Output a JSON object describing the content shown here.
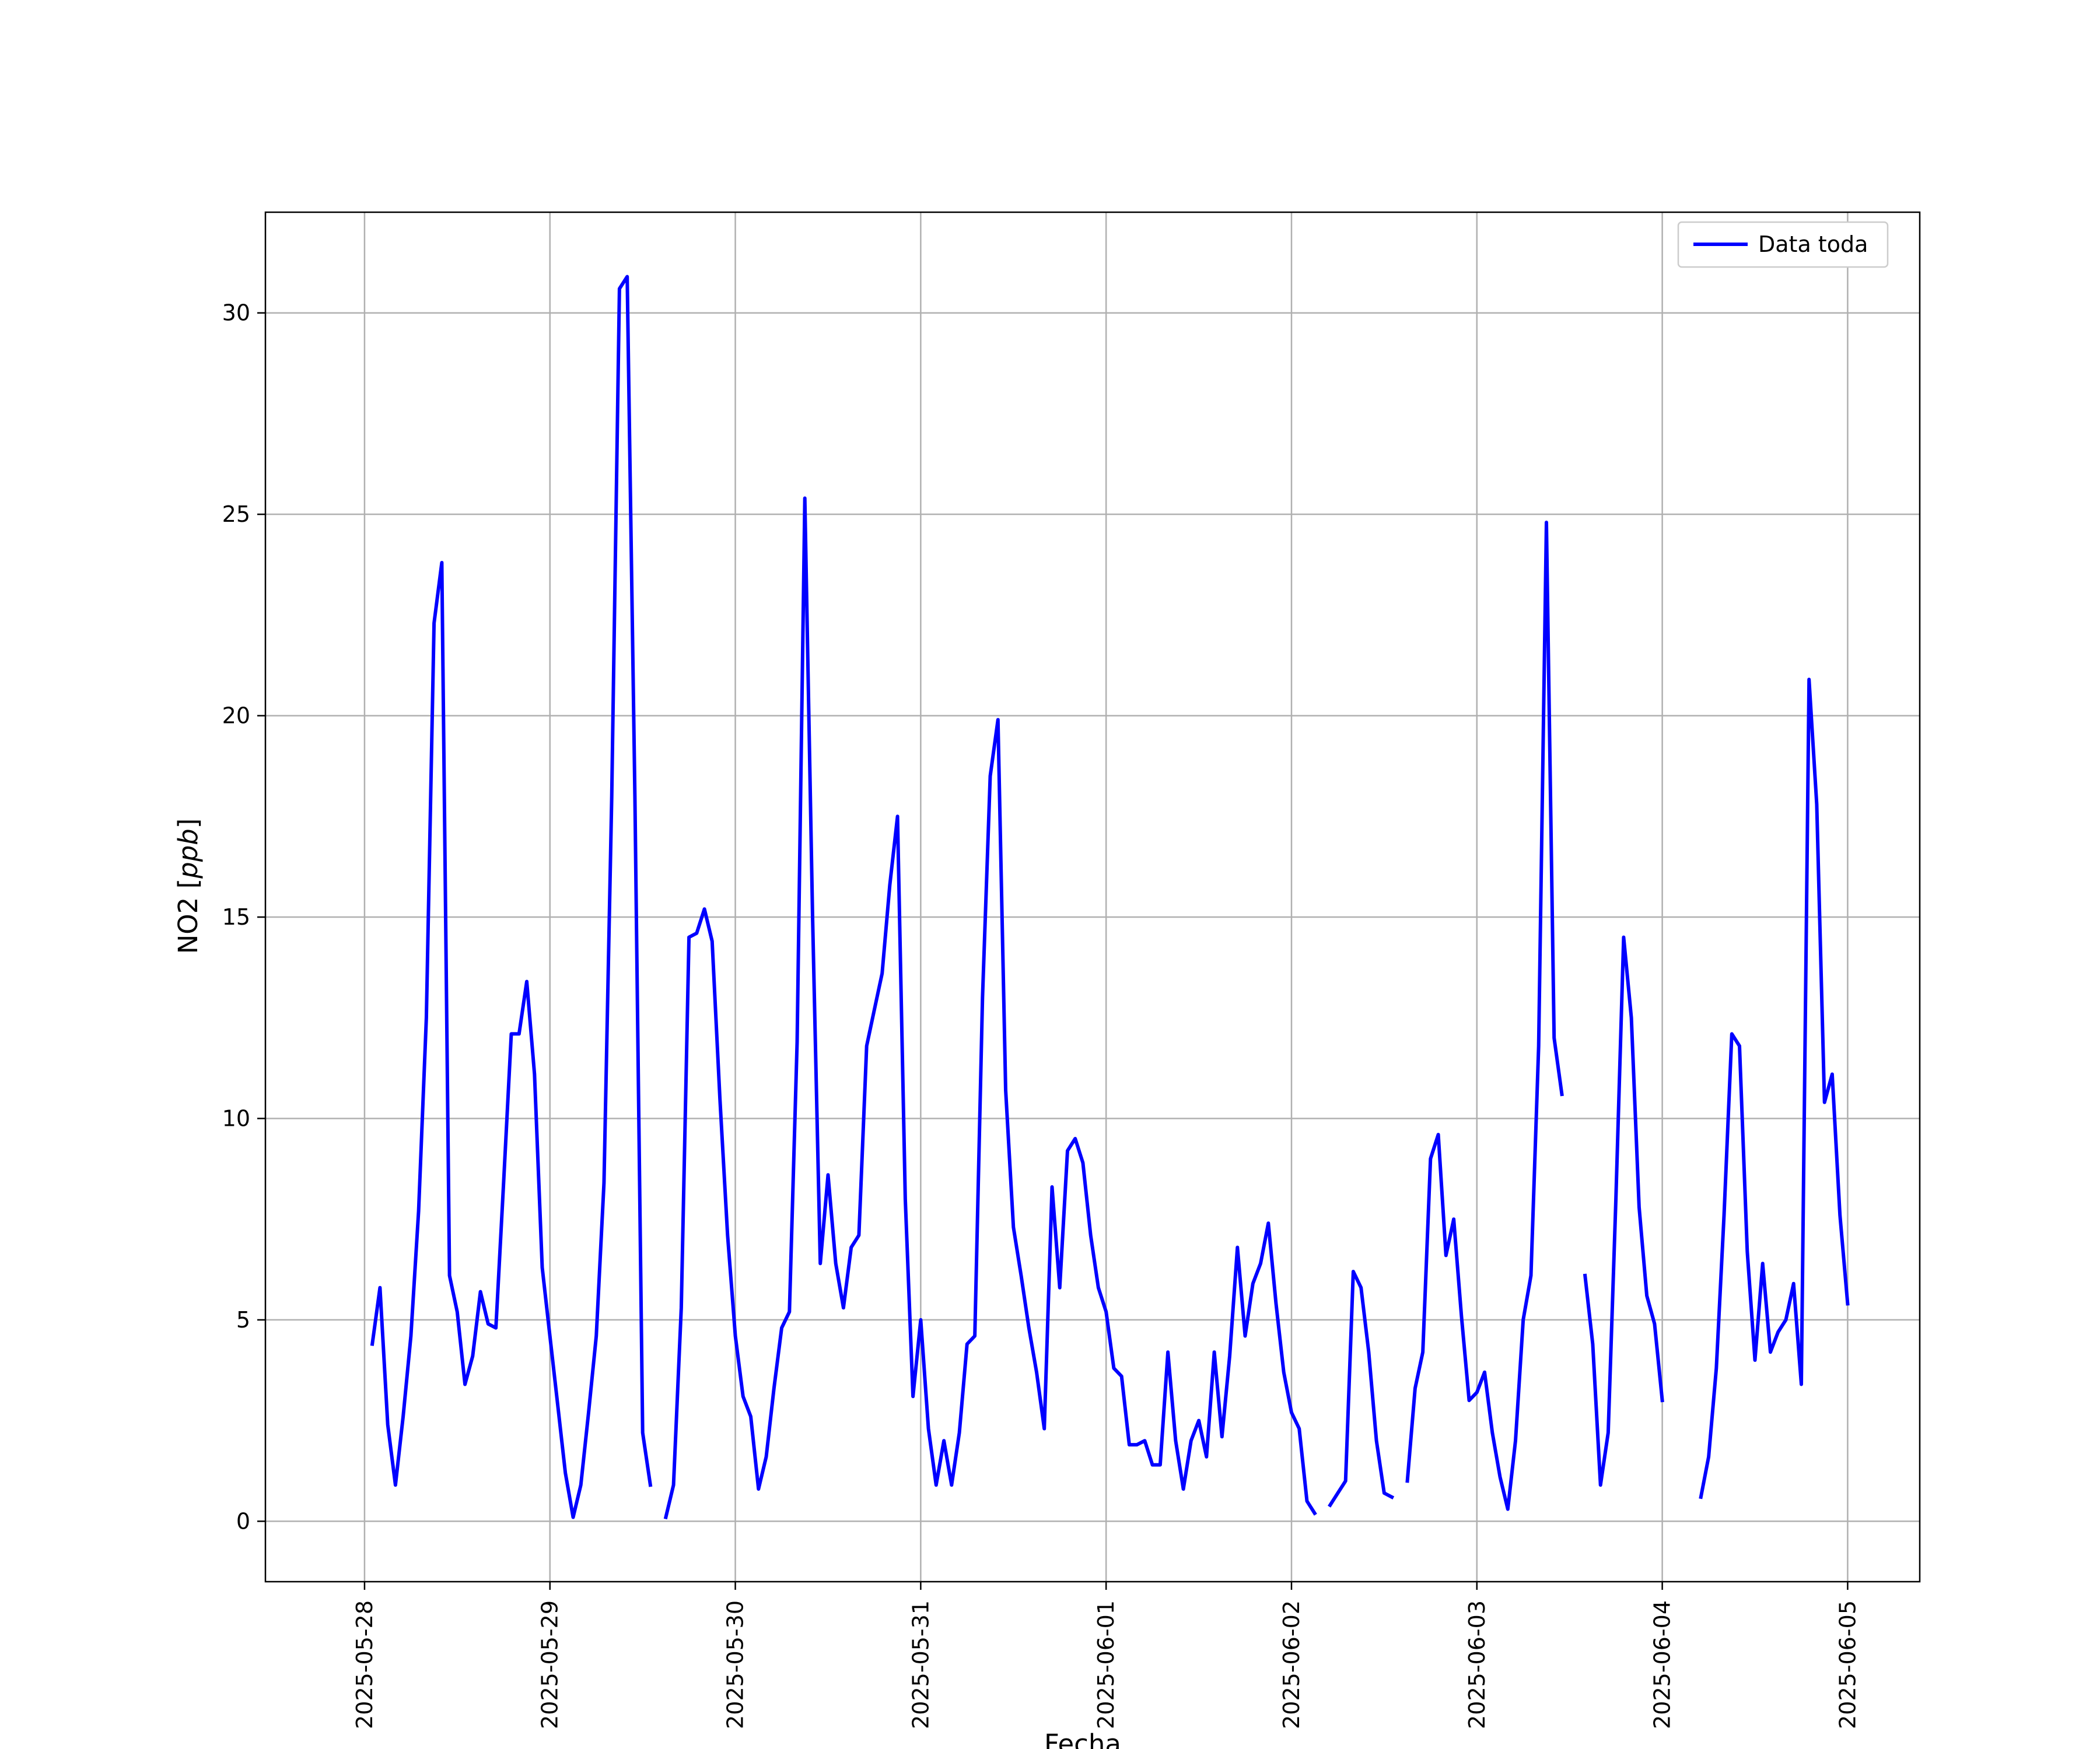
{
  "chart_data": {
    "type": "line",
    "xlabel": "Fecha",
    "ylabel_text": "NO2",
    "ylabel_unit": "ppb",
    "xticks": [
      "2025-05-28",
      "2025-05-29",
      "2025-05-30",
      "2025-05-31",
      "2025-06-01",
      "2025-06-02",
      "2025-06-03",
      "2025-06-04",
      "2025-06-05"
    ],
    "yticks": [
      0,
      5,
      10,
      15,
      20,
      25,
      30
    ],
    "xlim": [
      "2025-05-27 11:10",
      "2025-06-05 09:20"
    ],
    "ylim": [
      -1.5,
      32.5
    ],
    "grid": true,
    "legend_position": "top-right",
    "color": "#0000ff",
    "series": [
      {
        "name": "Data toda",
        "segments": [
          [
            [
              "2025-05-28 01:00",
              4.4
            ],
            [
              "2025-05-28 02:00",
              5.8
            ],
            [
              "2025-05-28 03:00",
              2.4
            ],
            [
              "2025-05-28 04:00",
              0.9
            ],
            [
              "2025-05-28 05:00",
              2.6
            ],
            [
              "2025-05-28 06:00",
              4.6
            ],
            [
              "2025-05-28 07:00",
              7.7
            ],
            [
              "2025-05-28 08:00",
              12.5
            ],
            [
              "2025-05-28 09:00",
              22.3
            ],
            [
              "2025-05-28 10:00",
              23.8
            ],
            [
              "2025-05-28 11:00",
              6.1
            ],
            [
              "2025-05-28 12:00",
              5.2
            ],
            [
              "2025-05-28 13:00",
              3.4
            ],
            [
              "2025-05-28 14:00",
              4.1
            ],
            [
              "2025-05-28 15:00",
              5.7
            ],
            [
              "2025-05-28 16:00",
              4.9
            ],
            [
              "2025-05-28 17:00",
              4.8
            ],
            [
              "2025-05-28 18:00",
              8.4
            ],
            [
              "2025-05-28 19:00",
              12.1
            ],
            [
              "2025-05-28 20:00",
              12.1
            ],
            [
              "2025-05-28 21:00",
              13.4
            ],
            [
              "2025-05-28 22:00",
              11.1
            ],
            [
              "2025-05-28 23:00",
              6.3
            ],
            [
              "2025-05-29 00:00",
              4.6
            ],
            [
              "2025-05-29 01:00",
              2.9
            ],
            [
              "2025-05-29 02:00",
              1.2
            ],
            [
              "2025-05-29 03:00",
              0.1
            ],
            [
              "2025-05-29 04:00",
              0.9
            ],
            [
              "2025-05-29 05:00",
              2.7
            ],
            [
              "2025-05-29 06:00",
              4.6
            ],
            [
              "2025-05-29 07:00",
              8.4
            ],
            [
              "2025-05-29 08:00",
              18.0
            ],
            [
              "2025-05-29 09:00",
              30.6
            ],
            [
              "2025-05-29 10:00",
              30.9
            ],
            [
              "2025-05-29 11:00",
              18.0
            ],
            [
              "2025-05-29 12:00",
              2.2
            ],
            [
              "2025-05-29 13:00",
              0.9
            ]
          ],
          [
            [
              "2025-05-29 15:00",
              0.1
            ],
            [
              "2025-05-29 16:00",
              0.9
            ],
            [
              "2025-05-29 17:00",
              5.3
            ],
            [
              "2025-05-29 18:00",
              14.5
            ],
            [
              "2025-05-29 19:00",
              14.6
            ],
            [
              "2025-05-29 20:00",
              15.2
            ],
            [
              "2025-05-29 21:00",
              14.4
            ],
            [
              "2025-05-29 22:00",
              10.5
            ],
            [
              "2025-05-29 23:00",
              7.1
            ],
            [
              "2025-05-30 00:00",
              4.6
            ],
            [
              "2025-05-30 01:00",
              3.1
            ],
            [
              "2025-05-30 02:00",
              2.6
            ],
            [
              "2025-05-30 03:00",
              0.8
            ],
            [
              "2025-05-30 04:00",
              1.6
            ],
            [
              "2025-05-30 05:00",
              3.3
            ],
            [
              "2025-05-30 06:00",
              4.8
            ],
            [
              "2025-05-30 07:00",
              5.2
            ],
            [
              "2025-05-30 08:00",
              11.9
            ],
            [
              "2025-05-30 09:00",
              25.4
            ],
            [
              "2025-05-30 10:00",
              15.0
            ],
            [
              "2025-05-30 11:00",
              6.4
            ],
            [
              "2025-05-30 12:00",
              8.6
            ],
            [
              "2025-05-30 13:00",
              6.4
            ],
            [
              "2025-05-30 14:00",
              5.3
            ],
            [
              "2025-05-30 15:00",
              6.8
            ],
            [
              "2025-05-30 16:00",
              7.1
            ],
            [
              "2025-05-30 17:00",
              11.8
            ],
            [
              "2025-05-30 18:00",
              12.7
            ],
            [
              "2025-05-30 19:00",
              13.6
            ],
            [
              "2025-05-30 20:00",
              15.8
            ],
            [
              "2025-05-30 21:00",
              17.5
            ],
            [
              "2025-05-30 22:00",
              8.0
            ],
            [
              "2025-05-30 23:00",
              3.1
            ],
            [
              "2025-05-31 00:00",
              5.0
            ],
            [
              "2025-05-31 01:00",
              2.3
            ],
            [
              "2025-05-31 02:00",
              0.9
            ],
            [
              "2025-05-31 03:00",
              2.0
            ],
            [
              "2025-05-31 04:00",
              0.9
            ],
            [
              "2025-05-31 05:00",
              2.2
            ],
            [
              "2025-05-31 06:00",
              4.4
            ],
            [
              "2025-05-31 07:00",
              4.6
            ],
            [
              "2025-05-31 08:00",
              13.0
            ],
            [
              "2025-05-31 09:00",
              18.5
            ],
            [
              "2025-05-31 10:00",
              19.9
            ],
            [
              "2025-05-31 11:00",
              10.7
            ],
            [
              "2025-05-31 12:00",
              7.3
            ],
            [
              "2025-05-31 13:00",
              6.1
            ],
            [
              "2025-05-31 14:00",
              4.8
            ],
            [
              "2025-05-31 15:00",
              3.7
            ],
            [
              "2025-05-31 16:00",
              2.3
            ],
            [
              "2025-05-31 17:00",
              8.3
            ],
            [
              "2025-05-31 18:00",
              5.8
            ],
            [
              "2025-05-31 19:00",
              9.2
            ],
            [
              "2025-05-31 20:00",
              9.5
            ],
            [
              "2025-05-31 21:00",
              8.9
            ],
            [
              "2025-05-31 22:00",
              7.1
            ],
            [
              "2025-05-31 23:00",
              5.8
            ],
            [
              "2025-06-01 00:00",
              5.2
            ],
            [
              "2025-06-01 01:00",
              3.8
            ],
            [
              "2025-06-01 02:00",
              3.6
            ],
            [
              "2025-06-01 03:00",
              1.9
            ],
            [
              "2025-06-01 04:00",
              1.9
            ],
            [
              "2025-06-01 05:00",
              2.0
            ],
            [
              "2025-06-01 06:00",
              1.4
            ],
            [
              "2025-06-01 07:00",
              1.4
            ],
            [
              "2025-06-01 08:00",
              4.2
            ],
            [
              "2025-06-01 09:00",
              2.0
            ],
            [
              "2025-06-01 10:00",
              0.8
            ],
            [
              "2025-06-01 11:00",
              2.0
            ],
            [
              "2025-06-01 12:00",
              2.5
            ],
            [
              "2025-06-01 13:00",
              1.6
            ],
            [
              "2025-06-01 14:00",
              4.2
            ],
            [
              "2025-06-01 15:00",
              2.1
            ],
            [
              "2025-06-01 16:00",
              4.1
            ],
            [
              "2025-06-01 17:00",
              6.8
            ],
            [
              "2025-06-01 18:00",
              4.6
            ],
            [
              "2025-06-01 19:00",
              5.9
            ],
            [
              "2025-06-01 20:00",
              6.4
            ],
            [
              "2025-06-01 21:00",
              7.4
            ],
            [
              "2025-06-01 22:00",
              5.4
            ],
            [
              "2025-06-01 23:00",
              3.7
            ],
            [
              "2025-06-02 00:00",
              2.7
            ],
            [
              "2025-06-02 01:00",
              2.3
            ],
            [
              "2025-06-02 02:00",
              0.5
            ],
            [
              "2025-06-02 03:00",
              0.2
            ]
          ],
          [
            [
              "2025-06-02 05:00",
              0.4
            ],
            [
              "2025-06-02 06:00",
              0.7
            ],
            [
              "2025-06-02 07:00",
              1.0
            ],
            [
              "2025-06-02 08:00",
              6.2
            ],
            [
              "2025-06-02 09:00",
              5.8
            ],
            [
              "2025-06-02 10:00",
              4.2
            ],
            [
              "2025-06-02 11:00",
              2.0
            ],
            [
              "2025-06-02 12:00",
              0.7
            ],
            [
              "2025-06-02 13:00",
              0.6
            ]
          ],
          [
            [
              "2025-06-02 15:00",
              1.0
            ],
            [
              "2025-06-02 16:00",
              3.3
            ],
            [
              "2025-06-02 17:00",
              4.2
            ],
            [
              "2025-06-02 18:00",
              9.0
            ],
            [
              "2025-06-02 19:00",
              9.6
            ],
            [
              "2025-06-02 20:00",
              6.6
            ],
            [
              "2025-06-02 21:00",
              7.5
            ],
            [
              "2025-06-02 22:00",
              5.1
            ],
            [
              "2025-06-02 23:00",
              3.0
            ],
            [
              "2025-06-03 00:00",
              3.2
            ],
            [
              "2025-06-03 01:00",
              3.7
            ],
            [
              "2025-06-03 02:00",
              2.2
            ],
            [
              "2025-06-03 03:00",
              1.1
            ],
            [
              "2025-06-03 04:00",
              0.3
            ],
            [
              "2025-06-03 05:00",
              2.0
            ],
            [
              "2025-06-03 06:00",
              5.0
            ],
            [
              "2025-06-03 07:00",
              6.1
            ],
            [
              "2025-06-03 08:00",
              11.8
            ],
            [
              "2025-06-03 09:00",
              24.8
            ],
            [
              "2025-06-03 10:00",
              12.0
            ],
            [
              "2025-06-03 11:00",
              10.6
            ]
          ],
          [
            [
              "2025-06-03 14:00",
              6.1
            ],
            [
              "2025-06-03 15:00",
              4.4
            ],
            [
              "2025-06-03 16:00",
              0.9
            ],
            [
              "2025-06-03 17:00",
              2.2
            ],
            [
              "2025-06-03 18:00",
              8.0
            ],
            [
              "2025-06-03 19:00",
              14.5
            ],
            [
              "2025-06-03 20:00",
              12.5
            ],
            [
              "2025-06-03 21:00",
              7.8
            ],
            [
              "2025-06-03 22:00",
              5.6
            ],
            [
              "2025-06-03 23:00",
              4.9
            ],
            [
              "2025-06-04 00:00",
              3.0
            ]
          ],
          [
            [
              "2025-06-04 05:00",
              0.6
            ],
            [
              "2025-06-04 06:00",
              1.6
            ],
            [
              "2025-06-04 07:00",
              3.8
            ],
            [
              "2025-06-04 08:00",
              7.6
            ],
            [
              "2025-06-04 09:00",
              12.1
            ],
            [
              "2025-06-04 10:00",
              11.8
            ],
            [
              "2025-06-04 11:00",
              6.7
            ],
            [
              "2025-06-04 12:00",
              4.0
            ],
            [
              "2025-06-04 13:00",
              6.4
            ],
            [
              "2025-06-04 14:00",
              4.2
            ],
            [
              "2025-06-04 15:00",
              4.7
            ],
            [
              "2025-06-04 16:00",
              5.0
            ],
            [
              "2025-06-04 17:00",
              5.9
            ],
            [
              "2025-06-04 18:00",
              3.4
            ],
            [
              "2025-06-04 19:00",
              20.9
            ],
            [
              "2025-06-04 20:00",
              17.8
            ],
            [
              "2025-06-04 21:00",
              10.4
            ],
            [
              "2025-06-04 22:00",
              11.1
            ],
            [
              "2025-06-04 23:00",
              7.6
            ],
            [
              "2025-06-05 00:00",
              5.4
            ]
          ]
        ]
      }
    ]
  }
}
